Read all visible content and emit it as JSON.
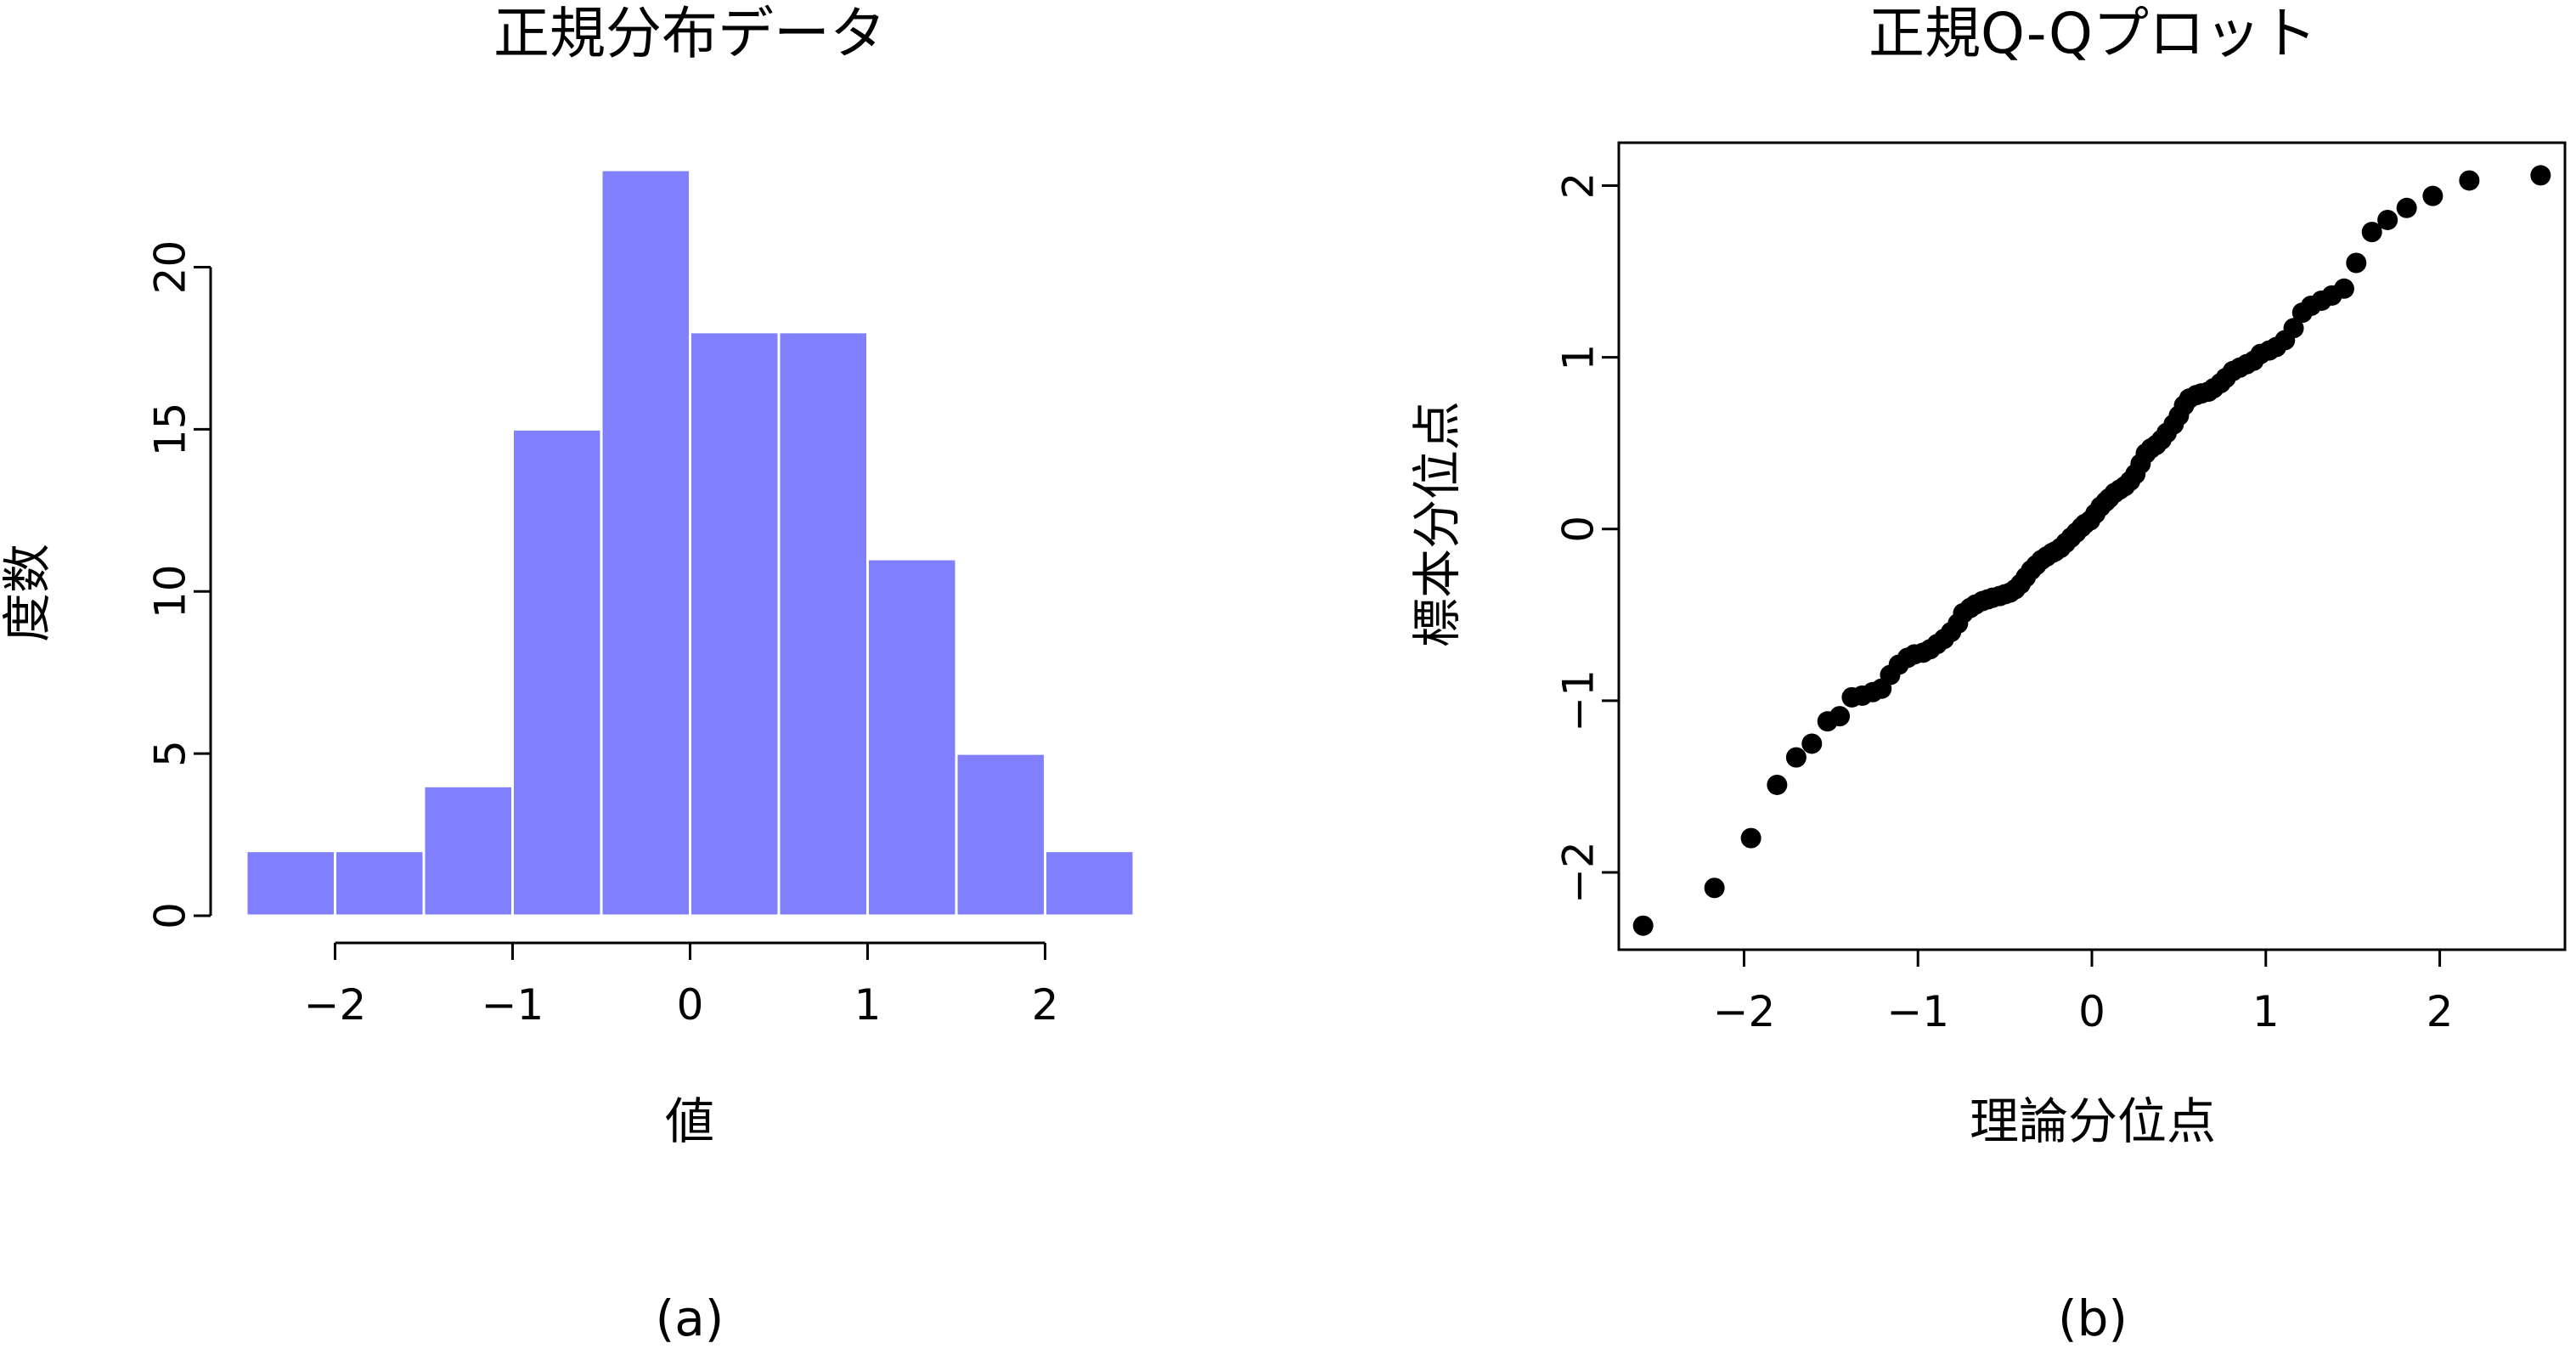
{
  "chart_data": [
    {
      "type": "bar",
      "title": "正規分布データ",
      "xlabel": "値",
      "ylabel": "度数",
      "caption": "(a)",
      "bin_edges": [
        -2.5,
        -2.0,
        -1.5,
        -1.0,
        -0.5,
        0.0,
        0.5,
        1.0,
        1.5,
        2.0,
        2.5
      ],
      "values": [
        2,
        2,
        4,
        15,
        23,
        18,
        18,
        11,
        5,
        2
      ],
      "bar_color": "#8080ff",
      "xlim": [
        -2.5,
        2.5
      ],
      "ylim": [
        0,
        23
      ],
      "x_ticks": [
        -2,
        -1,
        0,
        1,
        2
      ],
      "x_tick_labels": [
        "−2",
        "−1",
        "0",
        "1",
        "2"
      ],
      "y_ticks": [
        0,
        5,
        10,
        15,
        20
      ],
      "y_tick_labels": [
        "0",
        "5",
        "10",
        "15",
        "20"
      ],
      "grid": false
    },
    {
      "type": "scatter",
      "title": "正規Q-Qプロット",
      "xlabel": "理論分位点",
      "ylabel": "標本分位点",
      "caption": "(b)",
      "xlim": [
        -2.72,
        2.72
      ],
      "ylim": [
        -2.45,
        2.25
      ],
      "x_ticks": [
        -2,
        -1,
        0,
        1,
        2
      ],
      "x_tick_labels": [
        "−2",
        "−1",
        "0",
        "1",
        "2"
      ],
      "y_ticks": [
        -2,
        -1,
        0,
        1,
        2
      ],
      "y_tick_labels": [
        "−2",
        "−1",
        "0",
        "1",
        "2"
      ],
      "point_color": "#000000",
      "grid": false,
      "points": [
        [
          -2.58,
          -2.31
        ],
        [
          -2.17,
          -2.09
        ],
        [
          -1.96,
          -1.8
        ],
        [
          -1.81,
          -1.49
        ],
        [
          -1.7,
          -1.33
        ],
        [
          -1.61,
          -1.25
        ],
        [
          -1.52,
          -1.12
        ],
        [
          -1.45,
          -1.09
        ],
        [
          -1.38,
          -0.98
        ],
        [
          -1.32,
          -0.97
        ],
        [
          -1.26,
          -0.95
        ],
        [
          -1.21,
          -0.93
        ],
        [
          -1.16,
          -0.85
        ],
        [
          -1.11,
          -0.79
        ],
        [
          -1.06,
          -0.75
        ],
        [
          -1.02,
          -0.73
        ],
        [
          -0.97,
          -0.72
        ],
        [
          -0.93,
          -0.7
        ],
        [
          -0.89,
          -0.67
        ],
        [
          -0.85,
          -0.64
        ],
        [
          -0.81,
          -0.6
        ],
        [
          -0.77,
          -0.55
        ],
        [
          -0.74,
          -0.49
        ],
        [
          -0.7,
          -0.46
        ],
        [
          -0.67,
          -0.44
        ],
        [
          -0.63,
          -0.42
        ],
        [
          -0.6,
          -0.41
        ],
        [
          -0.57,
          -0.4
        ],
        [
          -0.53,
          -0.39
        ],
        [
          -0.5,
          -0.38
        ],
        [
          -0.47,
          -0.37
        ],
        [
          -0.44,
          -0.35
        ],
        [
          -0.41,
          -0.32
        ],
        [
          -0.38,
          -0.28
        ],
        [
          -0.35,
          -0.24
        ],
        [
          -0.32,
          -0.21
        ],
        [
          -0.29,
          -0.18
        ],
        [
          -0.26,
          -0.16
        ],
        [
          -0.23,
          -0.14
        ],
        [
          -0.21,
          -0.13
        ],
        [
          -0.18,
          -0.11
        ],
        [
          -0.15,
          -0.08
        ],
        [
          -0.12,
          -0.05
        ],
        [
          -0.09,
          -0.02
        ],
        [
          -0.06,
          0.01
        ],
        [
          -0.04,
          0.03
        ],
        [
          -0.01,
          0.05
        ],
        [
          0.02,
          0.09
        ],
        [
          0.05,
          0.13
        ],
        [
          0.08,
          0.16
        ],
        [
          0.1,
          0.18
        ],
        [
          0.13,
          0.21
        ],
        [
          0.16,
          0.23
        ],
        [
          0.19,
          0.25
        ],
        [
          0.22,
          0.28
        ],
        [
          0.25,
          0.32
        ],
        [
          0.28,
          0.38
        ],
        [
          0.31,
          0.44
        ],
        [
          0.34,
          0.47
        ],
        [
          0.37,
          0.49
        ],
        [
          0.4,
          0.52
        ],
        [
          0.43,
          0.56
        ],
        [
          0.47,
          0.61
        ],
        [
          0.5,
          0.66
        ],
        [
          0.53,
          0.72
        ],
        [
          0.56,
          0.76
        ],
        [
          0.6,
          0.78
        ],
        [
          0.63,
          0.79
        ],
        [
          0.67,
          0.8
        ],
        [
          0.7,
          0.82
        ],
        [
          0.74,
          0.85
        ],
        [
          0.77,
          0.88
        ],
        [
          0.81,
          0.92
        ],
        [
          0.85,
          0.94
        ],
        [
          0.89,
          0.96
        ],
        [
          0.93,
          0.98
        ],
        [
          0.97,
          1.02
        ],
        [
          1.02,
          1.04
        ],
        [
          1.06,
          1.06
        ],
        [
          1.11,
          1.1
        ],
        [
          1.16,
          1.17
        ],
        [
          1.21,
          1.26
        ],
        [
          1.26,
          1.3
        ],
        [
          1.32,
          1.33
        ],
        [
          1.38,
          1.36
        ],
        [
          1.45,
          1.4
        ],
        [
          1.52,
          1.55
        ],
        [
          1.61,
          1.73
        ],
        [
          1.7,
          1.8
        ],
        [
          1.81,
          1.87
        ],
        [
          1.96,
          1.94
        ],
        [
          2.17,
          2.03
        ],
        [
          2.58,
          2.06
        ]
      ]
    }
  ]
}
